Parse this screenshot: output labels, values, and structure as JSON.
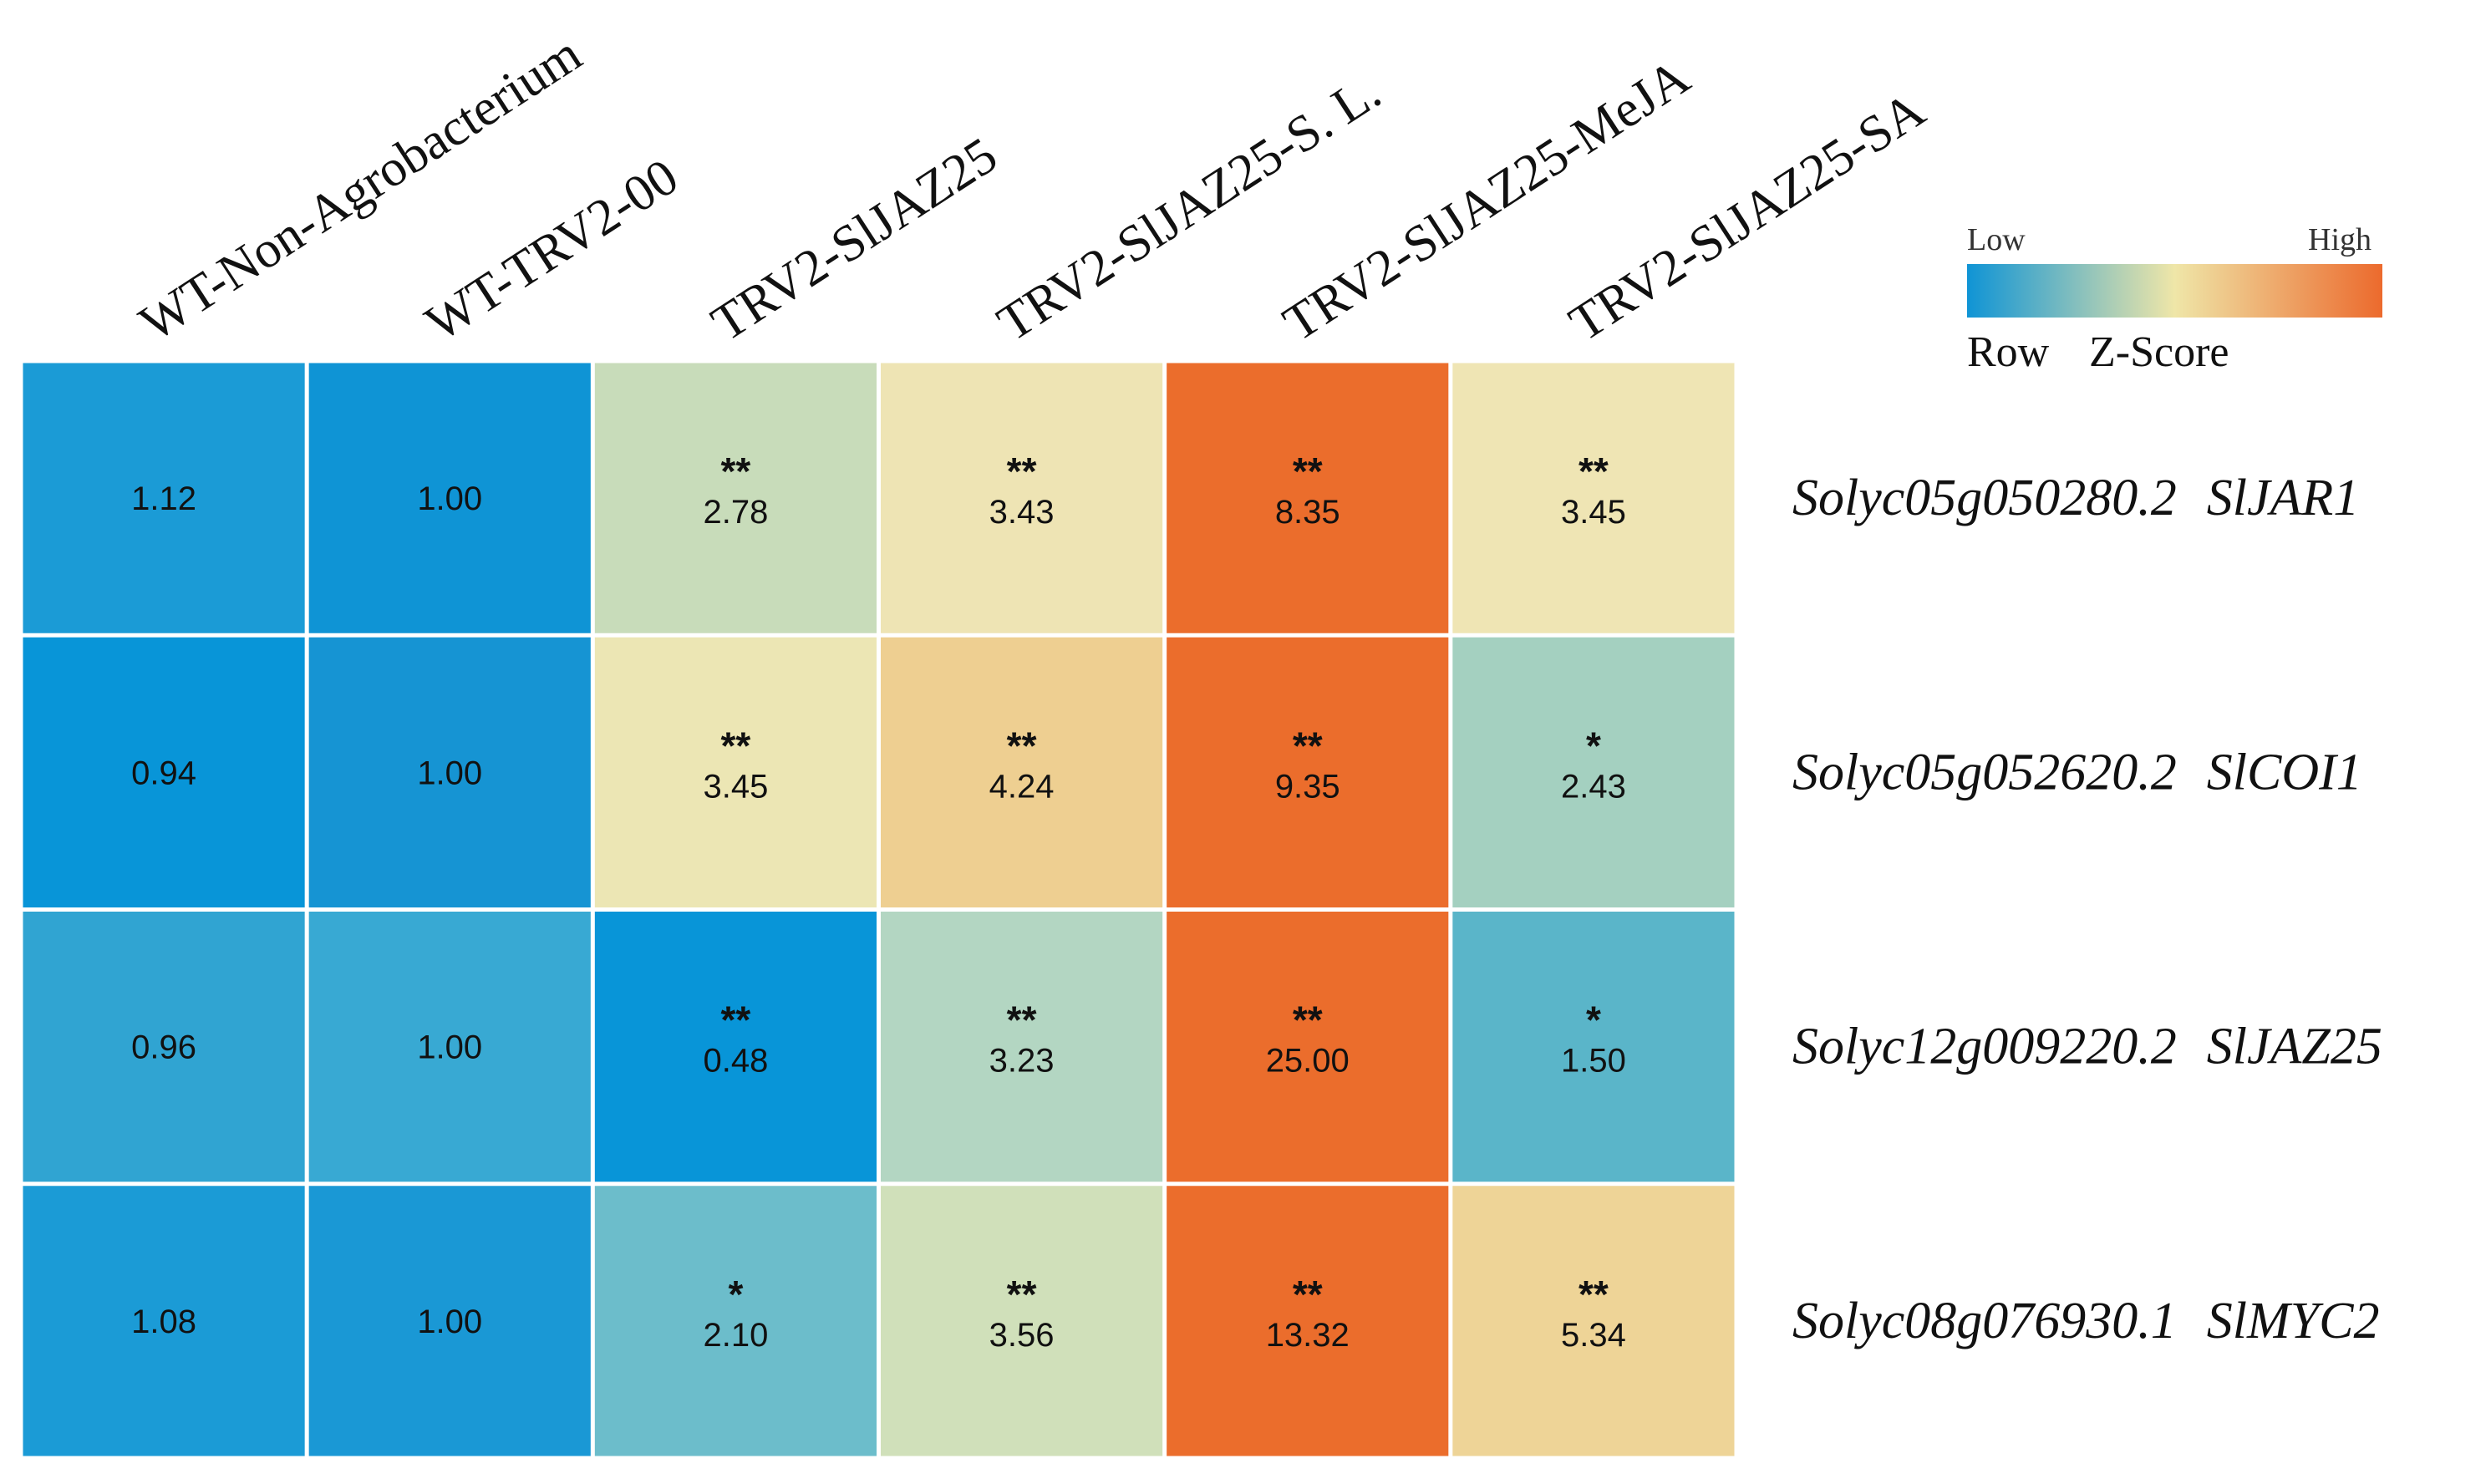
{
  "chart_data": {
    "type": "heatmap",
    "title": "",
    "columns": [
      "WT-Non-Agrobacterium",
      "WT-TRV2-00",
      "TRV2-SlJAZ25",
      "TRV2-SlJAZ25-S. L.",
      "TRV2-SlJAZ25-MeJA",
      "TRV2-SlJAZ25-SA"
    ],
    "rows": [
      {
        "gene_id": "Solyc05g050280.2",
        "gene_name": "SlJAR1",
        "values": [
          "1.12",
          "1.00",
          "2.78",
          "3.43",
          "8.35",
          "3.45"
        ],
        "significance": [
          "",
          "",
          "**",
          "**",
          "**",
          "**"
        ],
        "colors": [
          "#1b9bd6",
          "#0f94d5",
          "#c8dcba",
          "#eee4b4",
          "#eb6d2c",
          "#efe5b4"
        ]
      },
      {
        "gene_id": "Solyc05g052620.2",
        "gene_name": "SlCOI1",
        "values": [
          "0.94",
          "1.00",
          "3.45",
          "4.24",
          "9.35",
          "2.43"
        ],
        "significance": [
          "",
          "",
          "**",
          "**",
          "**",
          "*"
        ],
        "colors": [
          "#0895d8",
          "#1694d3",
          "#ece6b4",
          "#eecf91",
          "#eb6d2c",
          "#a4d0c0"
        ]
      },
      {
        "gene_id": "Solyc12g009220.2",
        "gene_name": "SlJAZ25",
        "values": [
          "0.96",
          "1.00",
          "0.48",
          "3.23",
          "25.00",
          "1.50"
        ],
        "significance": [
          "",
          "",
          "**",
          "**",
          "**",
          "*"
        ],
        "colors": [
          "#30a4d2",
          "#38a9d3",
          "#0895d8",
          "#b3d6c2",
          "#eb6d2c",
          "#5ab5c9"
        ]
      },
      {
        "gene_id": "Solyc08g076930.1",
        "gene_name": "SlMYC2",
        "values": [
          "1.08",
          "1.00",
          "2.10",
          "3.56",
          "13.32",
          "5.34"
        ],
        "significance": [
          "",
          "",
          "*",
          "**",
          "**",
          "**"
        ],
        "colors": [
          "#1b9bd6",
          "#1a98d5",
          "#6cbdcb",
          "#d0e0ba",
          "#eb6d2c",
          "#eed497"
        ]
      }
    ],
    "legend": {
      "low_label": "Low",
      "high_label": "High",
      "title_word1": "Row",
      "title_word2": "Z-Score",
      "gradient_colors": [
        "#0f94d5",
        "#efe6a8",
        "#ec6a2d"
      ]
    }
  }
}
